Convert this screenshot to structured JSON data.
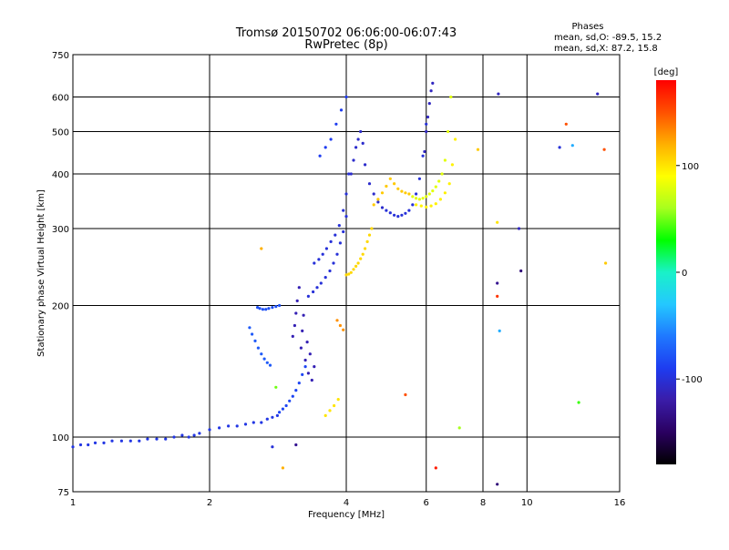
{
  "header": {
    "title_line1": "Tromsø 20150702 06:06:00-06:07:43",
    "title_line2": "RwPretec (8p)",
    "phases_label": "Phases",
    "phases_o": "mean, sd,O: -89.5, 15.2",
    "phases_x": "mean, sd,X: 87.2, 15.8"
  },
  "colors": {
    "background": "#ffffff",
    "axis": "#000000",
    "colormap": [
      "#000000",
      "#2a0060",
      "#3a1ca8",
      "#1e3cf0",
      "#1f78ff",
      "#24c8ff",
      "#19f2c8",
      "#00ff00",
      "#a8ff1e",
      "#ffff00",
      "#ffb000",
      "#ff5000",
      "#ff0000"
    ]
  },
  "chart_data": {
    "type": "scatter",
    "title": "Tromsø 20150702 06:06:00-06:07:43",
    "subtitle": "RwPretec (8p)",
    "xlabel": "Frequency [MHz]",
    "ylabel": "Stationary phase Virtual Height [km]",
    "x_scale": "log",
    "y_scale": "log",
    "xlim": [
      1,
      16
    ],
    "ylim": [
      75,
      750
    ],
    "x_ticks": [
      1,
      2,
      4,
      6,
      8,
      10,
      16
    ],
    "x_tick_labels": [
      "1",
      "2",
      "4",
      "6",
      "8",
      "10",
      "16"
    ],
    "y_ticks": [
      75,
      100,
      200,
      300,
      400,
      500,
      600,
      750
    ],
    "y_tick_labels": [
      "75",
      "100",
      "200",
      "300",
      "400",
      "500",
      "600",
      "750"
    ],
    "grid": true,
    "colorbar": {
      "label": "[deg]",
      "range": [
        -180,
        180
      ],
      "ticks": [
        100,
        0,
        -100
      ],
      "tick_labels": [
        "100",
        "0",
        "-100"
      ]
    },
    "series": [
      {
        "phase": -95,
        "x": [
          1.0,
          1.04,
          1.08,
          1.12,
          1.17,
          1.22,
          1.28,
          1.34,
          1.4,
          1.46,
          1.53,
          1.6,
          1.67,
          1.74,
          1.8,
          1.85,
          1.9,
          2.0,
          2.1,
          2.2,
          2.3,
          2.4,
          2.5,
          2.6,
          2.68,
          2.75,
          2.82
        ],
        "y": [
          95,
          96,
          96,
          97,
          97,
          98,
          98,
          98,
          98,
          99,
          99,
          99,
          100,
          101,
          100,
          101,
          102,
          104,
          105,
          106,
          106,
          107,
          108,
          108,
          110,
          111,
          112
        ]
      },
      {
        "phase": -85,
        "x": [
          2.85,
          2.9,
          2.95,
          3.0,
          3.05,
          3.1,
          3.15,
          3.2,
          3.25
        ],
        "y": [
          114,
          116,
          118,
          121,
          124,
          128,
          133,
          139,
          145
        ]
      },
      {
        "phase": -80,
        "x": [
          2.55,
          2.58,
          2.62,
          2.66,
          2.7,
          2.75,
          2.8,
          2.85
        ],
        "y": [
          198,
          197,
          196,
          196,
          197,
          198,
          199,
          200
        ]
      },
      {
        "phase": -75,
        "x": [
          2.45,
          2.48,
          2.52,
          2.56,
          2.6,
          2.64,
          2.68,
          2.72
        ],
        "y": [
          178,
          172,
          166,
          160,
          155,
          151,
          148,
          146
        ]
      },
      {
        "phase": -115,
        "x": [
          3.05,
          3.08,
          3.1,
          3.12,
          3.15,
          3.18,
          3.2,
          3.22,
          3.25,
          3.28,
          3.3,
          3.33,
          3.36,
          3.4
        ],
        "y": [
          170,
          180,
          192,
          205,
          220,
          160,
          175,
          190,
          150,
          165,
          140,
          155,
          135,
          145
        ]
      },
      {
        "phase": -100,
        "x": [
          3.3,
          3.38,
          3.45,
          3.52,
          3.6,
          3.68,
          3.75,
          3.82,
          3.88,
          3.94,
          4.0
        ],
        "y": [
          210,
          215,
          220,
          225,
          232,
          240,
          250,
          262,
          278,
          295,
          320
        ]
      },
      {
        "phase": -100,
        "x": [
          3.4,
          3.48,
          3.55,
          3.62,
          3.7,
          3.78,
          3.86,
          3.94,
          4.0,
          4.05
        ],
        "y": [
          250,
          255,
          262,
          270,
          280,
          290,
          305,
          330,
          360,
          400
        ]
      },
      {
        "phase": -105,
        "x": [
          4.1,
          4.15,
          4.2,
          4.25,
          4.3,
          4.35,
          4.4,
          4.5,
          4.6,
          4.7,
          4.8
        ],
        "y": [
          400,
          430,
          460,
          480,
          500,
          470,
          420,
          380,
          360,
          345,
          335
        ]
      },
      {
        "phase": -100,
        "x": [
          4.9,
          5.0,
          5.1,
          5.2,
          5.3,
          5.4,
          5.5,
          5.6,
          5.7,
          5.8,
          5.9,
          6.0
        ],
        "y": [
          330,
          326,
          322,
          320,
          322,
          325,
          330,
          340,
          360,
          390,
          440,
          520
        ]
      },
      {
        "phase": -110,
        "x": [
          5.95,
          6.0,
          6.05,
          6.1,
          6.15,
          6.2
        ],
        "y": [
          450,
          500,
          540,
          580,
          620,
          645
        ]
      },
      {
        "phase": -90,
        "x": [
          3.5,
          3.6,
          3.7,
          3.8,
          3.9,
          4.0
        ],
        "y": [
          440,
          460,
          480,
          520,
          560,
          600
        ]
      },
      {
        "phase": 105,
        "x": [
          4.0,
          4.05,
          4.1,
          4.15,
          4.2,
          4.25,
          4.3,
          4.35,
          4.4,
          4.45,
          4.5,
          4.55
        ],
        "y": [
          235,
          236,
          238,
          242,
          246,
          250,
          256,
          262,
          270,
          280,
          290,
          300
        ]
      },
      {
        "phase": 110,
        "x": [
          4.6,
          4.7,
          4.8,
          4.9,
          5.0,
          5.1,
          5.2,
          5.3,
          5.4,
          5.5
        ],
        "y": [
          340,
          350,
          362,
          375,
          390,
          380,
          370,
          365,
          362,
          360
        ]
      },
      {
        "phase": 80,
        "x": [
          5.6,
          5.7,
          5.8,
          5.9,
          6.0,
          6.1,
          6.2,
          6.3,
          6.4,
          6.5,
          6.6,
          6.7,
          6.8
        ],
        "y": [
          355,
          352,
          350,
          352,
          355,
          360,
          366,
          374,
          385,
          400,
          430,
          500,
          600
        ]
      },
      {
        "phase": 95,
        "x": [
          5.7,
          5.85,
          6.0,
          6.15,
          6.3,
          6.45,
          6.6,
          6.75,
          6.85,
          6.95
        ],
        "y": [
          340,
          338,
          336,
          338,
          342,
          350,
          362,
          380,
          420,
          480
        ]
      },
      {
        "phase": 100,
        "x": [
          3.6,
          3.68,
          3.76,
          3.84
        ],
        "y": [
          112,
          115,
          118,
          122
        ]
      },
      {
        "phase": 130,
        "x": [
          3.82,
          3.88,
          3.94
        ],
        "y": [
          185,
          180,
          176
        ]
      }
    ],
    "scattered_points": [
      {
        "x": 8.65,
        "y": 610,
        "phase": -110
      },
      {
        "x": 12.2,
        "y": 520,
        "phase": 150
      },
      {
        "x": 14.3,
        "y": 610,
        "phase": -110
      },
      {
        "x": 11.8,
        "y": 460,
        "phase": -100
      },
      {
        "x": 14.8,
        "y": 455,
        "phase": 150
      },
      {
        "x": 12.6,
        "y": 465,
        "phase": -40
      },
      {
        "x": 8.6,
        "y": 225,
        "phase": -130
      },
      {
        "x": 8.6,
        "y": 210,
        "phase": 160
      },
      {
        "x": 8.6,
        "y": 310,
        "phase": 100
      },
      {
        "x": 8.7,
        "y": 175,
        "phase": -40
      },
      {
        "x": 9.6,
        "y": 300,
        "phase": -110
      },
      {
        "x": 9.7,
        "y": 240,
        "phase": -140
      },
      {
        "x": 13.0,
        "y": 120,
        "phase": 40
      },
      {
        "x": 14.9,
        "y": 250,
        "phase": 110
      },
      {
        "x": 7.1,
        "y": 105,
        "phase": 60
      },
      {
        "x": 6.3,
        "y": 85,
        "phase": 170
      },
      {
        "x": 8.6,
        "y": 78,
        "phase": -140
      },
      {
        "x": 2.9,
        "y": 85,
        "phase": 120
      },
      {
        "x": 2.75,
        "y": 95,
        "phase": -100
      },
      {
        "x": 3.1,
        "y": 96,
        "phase": -130
      },
      {
        "x": 2.8,
        "y": 130,
        "phase": 50
      },
      {
        "x": 2.6,
        "y": 270,
        "phase": 120
      },
      {
        "x": 7.8,
        "y": 455,
        "phase": 110
      },
      {
        "x": 5.4,
        "y": 125,
        "phase": 150
      }
    ]
  }
}
